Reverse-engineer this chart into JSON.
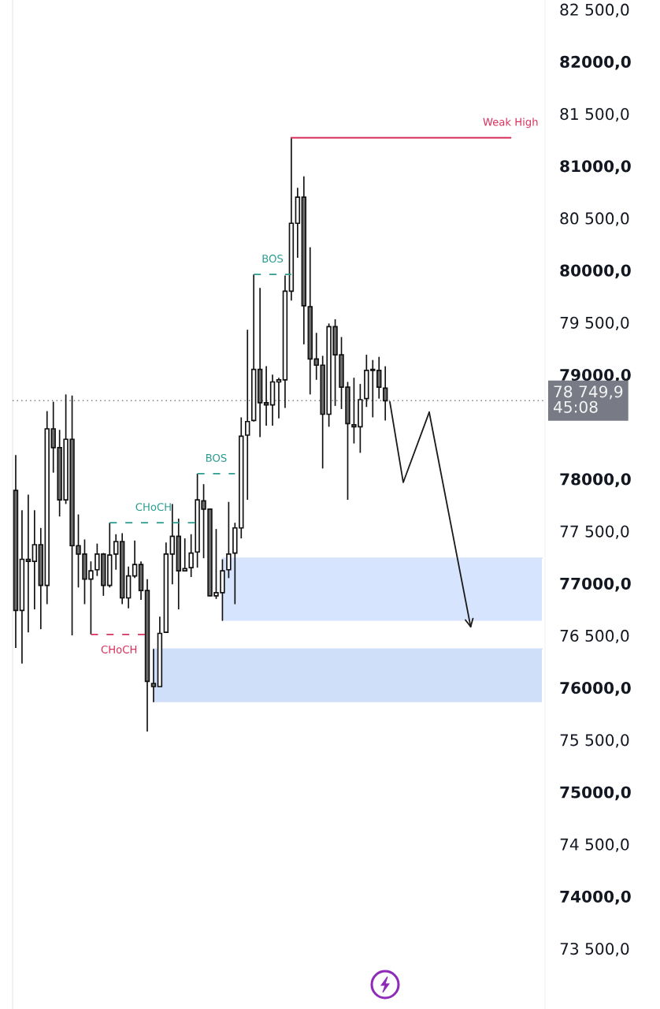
{
  "chart_data": {
    "type": "candlestick",
    "categories": [
      null,
      null,
      null,
      null,
      null,
      null,
      null,
      null,
      null,
      null,
      null,
      null,
      null,
      null,
      null,
      null,
      null,
      null,
      null,
      null,
      null,
      null,
      null,
      null,
      null,
      null,
      null,
      null,
      null,
      null,
      null,
      null,
      null,
      null,
      null,
      null,
      null,
      null,
      null,
      null,
      null,
      null,
      null,
      null,
      null,
      null,
      null,
      null,
      null,
      null,
      null,
      null,
      null,
      null,
      null,
      null,
      null,
      null,
      null,
      null,
      null,
      null,
      null,
      null,
      null,
      null,
      null,
      null,
      null,
      null,
      null,
      null,
      null,
      null,
      null,
      null,
      null,
      null,
      null,
      null,
      null,
      null,
      null,
      null,
      null
    ],
    "ohlc": [
      [
        77890,
        78230,
        76380,
        76740
      ],
      [
        76740,
        77700,
        76230,
        77230
      ],
      [
        77230,
        77850,
        76530,
        77210
      ],
      [
        77210,
        77700,
        76750,
        77370
      ],
      [
        77370,
        77530,
        76560,
        76980
      ],
      [
        76980,
        78650,
        76800,
        78480
      ],
      [
        78480,
        78740,
        78060,
        78300
      ],
      [
        78300,
        78470,
        77640,
        77800
      ],
      [
        77800,
        78810,
        77760,
        78380
      ],
      [
        78380,
        78800,
        76500,
        77360
      ],
      [
        77360,
        77660,
        76960,
        77280
      ],
      [
        77280,
        77420,
        76800,
        77040
      ],
      [
        77040,
        77210,
        76510,
        77120
      ],
      [
        77130,
        77380,
        77070,
        77280
      ],
      [
        77280,
        77290,
        76880,
        76980
      ],
      [
        76980,
        77580,
        76960,
        77270
      ],
      [
        77280,
        77470,
        77130,
        77400
      ],
      [
        77400,
        77480,
        76800,
        76860
      ],
      [
        76860,
        77160,
        76760,
        77070
      ],
      [
        77070,
        77410,
        77050,
        77180
      ],
      [
        77180,
        77210,
        76840,
        76930
      ],
      [
        76930,
        77040,
        75580,
        76060
      ],
      [
        76040,
        76370,
        75860,
        76010
      ],
      [
        76010,
        76680,
        76010,
        76520
      ],
      [
        76530,
        77390,
        76530,
        77280
      ],
      [
        77280,
        77760,
        76990,
        77450
      ],
      [
        77450,
        77620,
        76750,
        77120
      ],
      [
        77120,
        77430,
        77120,
        77140
      ],
      [
        77150,
        77470,
        77060,
        77290
      ],
      [
        77300,
        78050,
        77150,
        77800
      ],
      [
        77790,
        77950,
        77240,
        77710
      ],
      [
        77710,
        77710,
        76880,
        76880
      ],
      [
        76880,
        77520,
        76850,
        76910
      ],
      [
        76910,
        77230,
        76640,
        77120
      ],
      [
        77130,
        77780,
        77050,
        77280
      ],
      [
        77290,
        77580,
        76800,
        77530
      ],
      [
        77530,
        78590,
        77430,
        78410
      ],
      [
        78420,
        79430,
        77800,
        78550
      ],
      [
        78560,
        79960,
        78550,
        79050
      ],
      [
        79050,
        79830,
        78400,
        78730
      ],
      [
        78730,
        79080,
        78510,
        78710
      ],
      [
        78710,
        79000,
        78510,
        78930
      ],
      [
        78930,
        78970,
        78580,
        78950
      ],
      [
        78950,
        79950,
        78680,
        79800
      ],
      [
        79800,
        81270,
        79710,
        80450
      ],
      [
        80450,
        80790,
        80120,
        80700
      ],
      [
        80700,
        80900,
        79290,
        79660
      ],
      [
        79650,
        80220,
        78810,
        79150
      ],
      [
        79150,
        79400,
        78950,
        79090
      ],
      [
        79090,
        79180,
        78100,
        78620
      ],
      [
        78620,
        79490,
        78500,
        79460
      ],
      [
        79460,
        79530,
        78700,
        79190
      ],
      [
        79190,
        79360,
        78670,
        78880
      ],
      [
        78880,
        78930,
        77800,
        78530
      ],
      [
        78520,
        78970,
        78340,
        78500
      ],
      [
        78500,
        78910,
        78250,
        78760
      ],
      [
        78770,
        79190,
        78690,
        79040
      ],
      [
        79050,
        79140,
        78590,
        79040
      ],
      [
        79040,
        79170,
        78770,
        78880
      ],
      [
        78870,
        79080,
        78560,
        78750
      ],
      null,
      null,
      null,
      null,
      null,
      null,
      null,
      null,
      null,
      null,
      null,
      null,
      null,
      null,
      null,
      null,
      null,
      null,
      null,
      null,
      null,
      null,
      null,
      null,
      null
    ],
    "series": [
      {
        "type": "line",
        "color": "#d6e4fd",
        "values": [
          null,
          null,
          null,
          null,
          null,
          null,
          null,
          null,
          null,
          null,
          null,
          null,
          null,
          null,
          null,
          null,
          null,
          null,
          null,
          null,
          null,
          null,
          null,
          null,
          null,
          null,
          null,
          null,
          null,
          null,
          null,
          null,
          null,
          77240,
          77240,
          77240,
          77240,
          77240,
          77240,
          77240,
          77240,
          77240,
          77240,
          77240,
          77240,
          77240,
          77240,
          77240,
          77240,
          77240,
          77240,
          77240,
          77240,
          77240,
          77240,
          77240,
          77240,
          77240,
          77240,
          77240,
          77240,
          77240,
          77240,
          77240,
          77240,
          77240,
          77240,
          77240,
          77240,
          77240,
          77240,
          77240,
          77240,
          77240,
          77240,
          77240,
          77240,
          77240,
          77240,
          77240,
          77240,
          77240,
          77240,
          77240,
          77240
        ],
        "upper": [
          null,
          null,
          null,
          null,
          null,
          null,
          null,
          null,
          null,
          null,
          null,
          null,
          null,
          null,
          null,
          null,
          null,
          null,
          null,
          null,
          null,
          null,
          null,
          null,
          null,
          null,
          null,
          null,
          null,
          null,
          null,
          null,
          null,
          77240,
          77240,
          77240,
          77240,
          77240,
          77240,
          77240,
          77240,
          77240,
          77240,
          77240,
          77240,
          77240,
          77240,
          77240,
          77240,
          77240,
          77240,
          77240,
          77240,
          77240,
          77240,
          77240,
          77240,
          77240,
          77240,
          77240,
          77240,
          77240,
          77240,
          77240,
          77240,
          77240,
          77240,
          77240,
          77240,
          77240,
          77240,
          77240,
          77240,
          77240,
          77240,
          77240,
          77240,
          77240,
          77240,
          77240,
          77240,
          77240,
          77240,
          77240,
          77240
        ],
        "lower": [
          null,
          null,
          null,
          null,
          null,
          null,
          null,
          null,
          null,
          null,
          null,
          null,
          null,
          null,
          null,
          null,
          null,
          null,
          null,
          null,
          null,
          null,
          null,
          null,
          null,
          null,
          null,
          null,
          null,
          null,
          null,
          null,
          null,
          76640,
          76640,
          76640,
          76640,
          76640,
          76640,
          76640,
          76640,
          76640,
          76640,
          76640,
          76640,
          76640,
          76640,
          76640,
          76640,
          76640,
          76640,
          76640,
          76640,
          76640,
          76640,
          76640,
          76640,
          76640,
          76640,
          76640,
          76640,
          76640,
          76640,
          76640,
          76640,
          76640,
          76640,
          76640,
          76640,
          76640,
          76640,
          76640,
          76640,
          76640,
          76640,
          76640,
          76640,
          76640,
          76640,
          76640,
          76640,
          76640,
          76640,
          76640,
          76640
        ]
      },
      {
        "type": "line",
        "color": "#cfdef9",
        "values": [
          null,
          null,
          null,
          null,
          null,
          null,
          null,
          null,
          null,
          null,
          null,
          null,
          null,
          null,
          null,
          null,
          null,
          null,
          null,
          null,
          null,
          null,
          76370,
          76370,
          76370,
          76370,
          76370,
          76370,
          76370,
          76370,
          76370,
          76370,
          76370,
          76370,
          76370,
          76370,
          76370,
          76370,
          76370,
          76370,
          76370,
          76370,
          76370,
          76370,
          76370,
          76370,
          76370,
          76370,
          76370,
          76370,
          76370,
          76370,
          76370,
          76370,
          76370,
          76370,
          76370,
          76370,
          76370,
          76370,
          76370,
          76370,
          76370,
          76370,
          76370,
          76370,
          76370,
          76370,
          76370,
          76370,
          76370,
          76370,
          76370,
          76370,
          76370,
          76370,
          76370,
          76370,
          76370,
          76370,
          76370,
          76370,
          76370,
          76370,
          76370
        ],
        "upper": [
          null,
          null,
          null,
          null,
          null,
          null,
          null,
          null,
          null,
          null,
          null,
          null,
          null,
          null,
          null,
          null,
          null,
          null,
          null,
          null,
          null,
          null,
          76370,
          76370,
          76370,
          76370,
          76370,
          76370,
          76370,
          76370,
          76370,
          76370,
          76370,
          76370,
          76370,
          76370,
          76370,
          76370,
          76370,
          76370,
          76370,
          76370,
          76370,
          76370,
          76370,
          76370,
          76370,
          76370,
          76370,
          76370,
          76370,
          76370,
          76370,
          76370,
          76370,
          76370,
          76370,
          76370,
          76370,
          76370,
          76370,
          76370,
          76370,
          76370,
          76370,
          76370,
          76370,
          76370,
          76370,
          76370,
          76370,
          76370,
          76370,
          76370,
          76370,
          76370,
          76370,
          76370,
          76370,
          76370,
          76370,
          76370,
          76370,
          76370,
          76370
        ],
        "lower": [
          null,
          null,
          null,
          null,
          null,
          null,
          null,
          null,
          null,
          null,
          null,
          null,
          null,
          null,
          null,
          null,
          null,
          null,
          null,
          null,
          null,
          null,
          75860,
          75860,
          75860,
          75860,
          75860,
          75860,
          75860,
          75860,
          75860,
          75860,
          75860,
          75860,
          75860,
          75860,
          75860,
          75860,
          75860,
          75860,
          75860,
          75860,
          75860,
          75860,
          75860,
          75860,
          75860,
          75860,
          75860,
          75860,
          75860,
          75860,
          75860,
          75860,
          75860,
          75860,
          75860,
          75860,
          75860,
          75860,
          75860,
          75860,
          75860,
          75860,
          75860,
          75860,
          75860,
          75860,
          75860,
          75860,
          75860,
          75860,
          75860,
          75860,
          75860,
          75860,
          75860,
          75860,
          75860,
          75860,
          75860,
          75860,
          75860,
          75860,
          75860
        ]
      },
      {
        "type": "line",
        "name": "CHoCH",
        "color": "#d9325e",
        "line_style": "dashed",
        "values": [
          null,
          null,
          null,
          null,
          null,
          null,
          null,
          null,
          null,
          null,
          null,
          null,
          76510,
          76510,
          76510,
          76510,
          76510,
          76510,
          76510,
          76510,
          76510,
          76510,
          null,
          null,
          null,
          null,
          null,
          null,
          null,
          null,
          null,
          null,
          null,
          null,
          null,
          null,
          null,
          null,
          null,
          null,
          null,
          null,
          null,
          null,
          null,
          null,
          null,
          null,
          null,
          null,
          null,
          null,
          null,
          null,
          null,
          null,
          null,
          null,
          null,
          null,
          null,
          null,
          null,
          null,
          null,
          null,
          null,
          null,
          null,
          null,
          null,
          null,
          null,
          null,
          null,
          null,
          null,
          null,
          null,
          null,
          null,
          null,
          null,
          null,
          null
        ]
      },
      {
        "type": "line",
        "name": "CHoCH",
        "color": "#2a9d8f",
        "line_style": "dashed",
        "values": [
          null,
          null,
          null,
          null,
          null,
          null,
          null,
          null,
          null,
          null,
          null,
          null,
          null,
          null,
          null,
          77580,
          77580,
          77580,
          77580,
          77580,
          77580,
          77580,
          77580,
          77580,
          77580,
          77580,
          77580,
          77580,
          77580,
          77580,
          null,
          null,
          null,
          null,
          null,
          null,
          null,
          null,
          null,
          null,
          null,
          null,
          null,
          null,
          null,
          null,
          null,
          null,
          null,
          null,
          null,
          null,
          null,
          null,
          null,
          null,
          null,
          null,
          null,
          null,
          null,
          null,
          null,
          null,
          null,
          null,
          null,
          null,
          null,
          null,
          null,
          null,
          null,
          null,
          null,
          null,
          null,
          null,
          null,
          null,
          null,
          null,
          null,
          null,
          null
        ]
      },
      {
        "type": "line",
        "name": "BOS",
        "color": "#2a9d8f",
        "line_style": "dashed",
        "values": [
          null,
          null,
          null,
          null,
          null,
          null,
          null,
          null,
          null,
          null,
          null,
          null,
          null,
          null,
          null,
          null,
          null,
          null,
          null,
          null,
          null,
          null,
          null,
          null,
          null,
          null,
          null,
          null,
          null,
          78050,
          78050,
          78050,
          78050,
          78050,
          78050,
          78050,
          null,
          null,
          null,
          null,
          null,
          null,
          null,
          null,
          null,
          null,
          null,
          null,
          null,
          null,
          null,
          null,
          null,
          null,
          null,
          null,
          null,
          null,
          null,
          null,
          null,
          null,
          null,
          null,
          null,
          null,
          null,
          null,
          null,
          null,
          null,
          null,
          null,
          null,
          null,
          null,
          null,
          null,
          null,
          null,
          null,
          null,
          null,
          null,
          null
        ]
      },
      {
        "type": "line",
        "name": "BOS",
        "color": "#2a9d8f",
        "line_style": "dashed",
        "values": [
          null,
          null,
          null,
          null,
          null,
          null,
          null,
          null,
          null,
          null,
          null,
          null,
          null,
          null,
          null,
          null,
          null,
          null,
          null,
          null,
          null,
          null,
          null,
          null,
          null,
          null,
          null,
          null,
          null,
          null,
          null,
          null,
          null,
          null,
          null,
          null,
          null,
          null,
          79960,
          79960,
          79960,
          79960,
          79960,
          79960,
          79960,
          null,
          null,
          null,
          null,
          null,
          null,
          null,
          null,
          null,
          null,
          null,
          null,
          null,
          null,
          null,
          null,
          null,
          null,
          null,
          null,
          null,
          null,
          null,
          null,
          null,
          null,
          null,
          null,
          null,
          null,
          null,
          null,
          null,
          null,
          null,
          null,
          null,
          null,
          null,
          null
        ]
      },
      {
        "type": "line",
        "name": "Weak High",
        "color": "#d9325e",
        "line_style": "solid",
        "values": [
          null,
          null,
          null,
          null,
          null,
          null,
          null,
          null,
          null,
          null,
          null,
          null,
          null,
          null,
          null,
          null,
          null,
          null,
          null,
          null,
          null,
          null,
          null,
          null,
          null,
          null,
          null,
          null,
          null,
          null,
          null,
          null,
          null,
          null,
          null,
          null,
          null,
          null,
          null,
          null,
          null,
          null,
          null,
          null,
          81270,
          81270,
          81270,
          81270,
          81270,
          81270,
          81270,
          81270,
          81270,
          81270,
          81270,
          81270,
          81270,
          81270,
          81270,
          81270,
          81270,
          81270,
          81270,
          81270,
          81270,
          81270,
          81270,
          81270,
          81270,
          81270,
          81270,
          81270,
          81270,
          81270,
          81270,
          81270,
          81270,
          81270,
          81270,
          81270,
          null,
          null,
          null,
          null,
          null
        ]
      }
    ],
    "ylim": [
      72920,
      82590
    ],
    "yticks": [
      {
        "value": 82500,
        "label": "82 500,0"
      },
      {
        "value": 82000,
        "label": "82000,0"
      },
      {
        "value": 81500,
        "label": "81 500,0"
      },
      {
        "value": 81000,
        "label": "81000,0"
      },
      {
        "value": 80500,
        "label": "80 500,0"
      },
      {
        "value": 80000,
        "label": "80000,0"
      },
      {
        "value": 79500,
        "label": "79 500,0"
      },
      {
        "value": 79000,
        "label": "79000,0"
      },
      {
        "value": 78000,
        "label": "78000,0"
      },
      {
        "value": 77500,
        "label": "77 500,0"
      },
      {
        "value": 77000,
        "label": "77000,0"
      },
      {
        "value": 76500,
        "label": "76 500,0"
      },
      {
        "value": 76000,
        "label": "76000,0"
      },
      {
        "value": 75500,
        "label": "75 500,0"
      },
      {
        "value": 75000,
        "label": "75000,0"
      },
      {
        "value": 74500,
        "label": "74 500,0"
      },
      {
        "value": 74000,
        "label": "74000,0"
      },
      {
        "value": 73500,
        "label": "73 500,0"
      }
    ],
    "tick_labels": "y",
    "ref_lines": [
      {
        "axis": "y",
        "value": 78749.9,
        "label": "78 749,9\n45:08",
        "color": "#787b86",
        "line_style": "dotted"
      }
    ]
  }
}
